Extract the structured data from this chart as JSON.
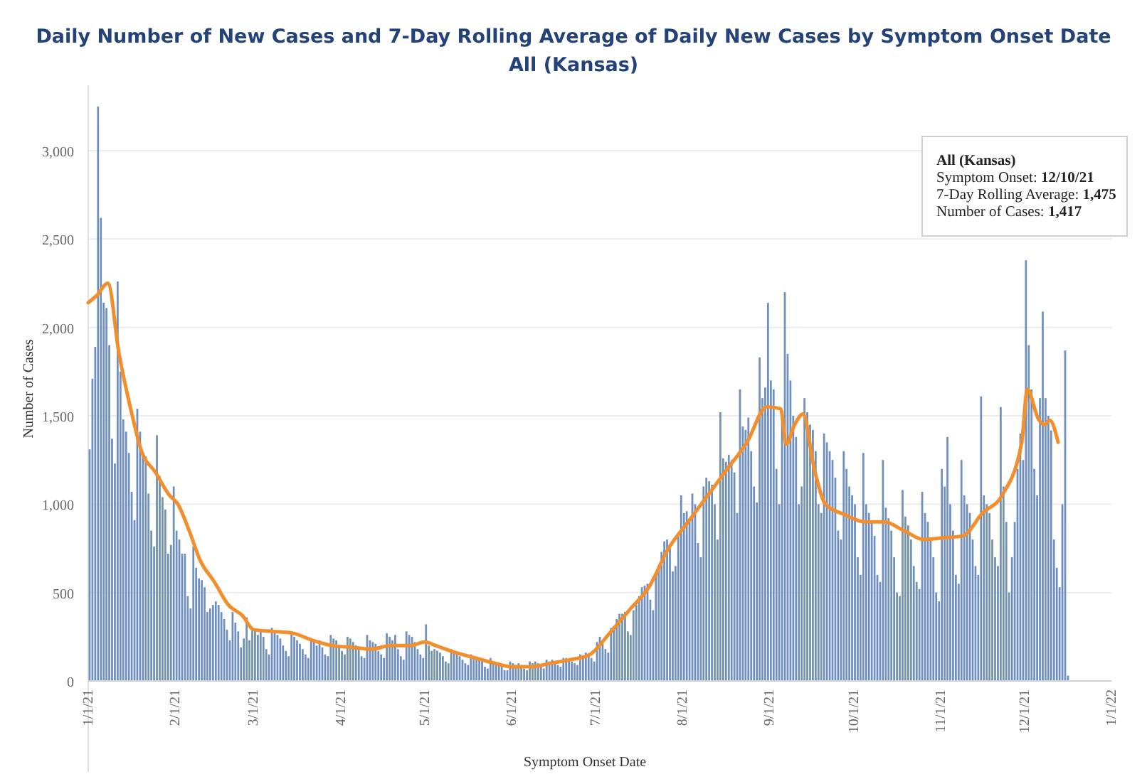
{
  "chart_data": {
    "type": "bar",
    "title": "Daily Number of New Cases and 7-Day Rolling Average of Daily New Cases by Symptom Onset Date",
    "subtitle": "All (Kansas)",
    "xlabel": "Symptom Onset Date",
    "ylabel": "Number of Cases",
    "xlim": [
      "2021-01-01",
      "2022-01-01"
    ],
    "xticks": [
      {
        "value": "2021-01-01",
        "label": "1/1/21"
      },
      {
        "value": "2021-02-01",
        "label": "2/1/21"
      },
      {
        "value": "2021-03-01",
        "label": "3/1/21"
      },
      {
        "value": "2021-04-01",
        "label": "4/1/21"
      },
      {
        "value": "2021-05-01",
        "label": "5/1/21"
      },
      {
        "value": "2021-06-01",
        "label": "6/1/21"
      },
      {
        "value": "2021-07-01",
        "label": "7/1/21"
      },
      {
        "value": "2021-08-01",
        "label": "8/1/21"
      },
      {
        "value": "2021-09-01",
        "label": "9/1/21"
      },
      {
        "value": "2021-10-01",
        "label": "10/1/21"
      },
      {
        "value": "2021-11-01",
        "label": "11/1/21"
      },
      {
        "value": "2021-12-01",
        "label": "12/1/21"
      },
      {
        "value": "2022-01-01",
        "label": "1/1/22"
      }
    ],
    "ylim": [
      0,
      3370
    ],
    "yticks": [
      0,
      {
        "value": 500,
        "label": "500"
      },
      {
        "value": 1000,
        "label": "1,000"
      },
      {
        "value": 1500,
        "label": "1,500"
      },
      {
        "value": 2000,
        "label": "2,000"
      },
      {
        "value": 2500,
        "label": "2,500"
      },
      {
        "value": 3000,
        "label": "3,000"
      }
    ],
    "grid": "y",
    "series": [
      {
        "type": "bar",
        "color": "#6f8fbc",
        "x": [
          "2021-01-01",
          "2021-01-02",
          "2021-01-03",
          "2021-01-04",
          "2021-01-05",
          "2021-01-06",
          "2021-01-07",
          "2021-01-08",
          "2021-01-09",
          "2021-01-10",
          "2021-01-11",
          "2021-01-12",
          "2021-01-13",
          "2021-01-14",
          "2021-01-15",
          "2021-01-16",
          "2021-01-17",
          "2021-01-18",
          "2021-01-19",
          "2021-01-20",
          "2021-01-21",
          "2021-01-22",
          "2021-01-23",
          "2021-01-24",
          "2021-01-25",
          "2021-01-26",
          "2021-01-27",
          "2021-01-28",
          "2021-01-29",
          "2021-01-30",
          "2021-01-31",
          "2021-02-01",
          "2021-02-02",
          "2021-02-03",
          "2021-02-04",
          "2021-02-05",
          "2021-02-06",
          "2021-02-07",
          "2021-02-08",
          "2021-02-09",
          "2021-02-10",
          "2021-02-11",
          "2021-02-12",
          "2021-02-13",
          "2021-02-14",
          "2021-02-15",
          "2021-02-16",
          "2021-02-17",
          "2021-02-18",
          "2021-02-19",
          "2021-02-20",
          "2021-02-21",
          "2021-02-22",
          "2021-02-23",
          "2021-02-24",
          "2021-02-25",
          "2021-02-26",
          "2021-02-27",
          "2021-02-28",
          "2021-03-01",
          "2021-03-02",
          "2021-03-03",
          "2021-03-04",
          "2021-03-05",
          "2021-03-06",
          "2021-03-07",
          "2021-03-08",
          "2021-03-09",
          "2021-03-10",
          "2021-03-11",
          "2021-03-12",
          "2021-03-13",
          "2021-03-14",
          "2021-03-15",
          "2021-03-16",
          "2021-03-17",
          "2021-03-18",
          "2021-03-19",
          "2021-03-20",
          "2021-03-21",
          "2021-03-22",
          "2021-03-23",
          "2021-03-24",
          "2021-03-25",
          "2021-03-26",
          "2021-03-27",
          "2021-03-28",
          "2021-03-29",
          "2021-03-30",
          "2021-03-31",
          "2021-04-01",
          "2021-04-02",
          "2021-04-03",
          "2021-04-04",
          "2021-04-05",
          "2021-04-06",
          "2021-04-07",
          "2021-04-08",
          "2021-04-09",
          "2021-04-10",
          "2021-04-11",
          "2021-04-12",
          "2021-04-13",
          "2021-04-14",
          "2021-04-15",
          "2021-04-16",
          "2021-04-17",
          "2021-04-18",
          "2021-04-19",
          "2021-04-20",
          "2021-04-21",
          "2021-04-22",
          "2021-04-23",
          "2021-04-24",
          "2021-04-25",
          "2021-04-26",
          "2021-04-27",
          "2021-04-28",
          "2021-04-29",
          "2021-04-30",
          "2021-05-01",
          "2021-05-02",
          "2021-05-03",
          "2021-05-04",
          "2021-05-05",
          "2021-05-06",
          "2021-05-07",
          "2021-05-08",
          "2021-05-09",
          "2021-05-10",
          "2021-05-11",
          "2021-05-12",
          "2021-05-13",
          "2021-05-14",
          "2021-05-15",
          "2021-05-16",
          "2021-05-17",
          "2021-05-18",
          "2021-05-19",
          "2021-05-20",
          "2021-05-21",
          "2021-05-22",
          "2021-05-23",
          "2021-05-24",
          "2021-05-25",
          "2021-05-26",
          "2021-05-27",
          "2021-05-28",
          "2021-05-29",
          "2021-05-30",
          "2021-05-31",
          "2021-06-01",
          "2021-06-02",
          "2021-06-03",
          "2021-06-04",
          "2021-06-05",
          "2021-06-06",
          "2021-06-07",
          "2021-06-08",
          "2021-06-09",
          "2021-06-10",
          "2021-06-11",
          "2021-06-12",
          "2021-06-13",
          "2021-06-14",
          "2021-06-15",
          "2021-06-16",
          "2021-06-17",
          "2021-06-18",
          "2021-06-19",
          "2021-06-20",
          "2021-06-21",
          "2021-06-22",
          "2021-06-23",
          "2021-06-24",
          "2021-06-25",
          "2021-06-26",
          "2021-06-27",
          "2021-06-28",
          "2021-06-29",
          "2021-06-30",
          "2021-07-01",
          "2021-07-02",
          "2021-07-03",
          "2021-07-04",
          "2021-07-05",
          "2021-07-06",
          "2021-07-07",
          "2021-07-08",
          "2021-07-09",
          "2021-07-10",
          "2021-07-11",
          "2021-07-12",
          "2021-07-13",
          "2021-07-14",
          "2021-07-15",
          "2021-07-16",
          "2021-07-17",
          "2021-07-18",
          "2021-07-19",
          "2021-07-20",
          "2021-07-21",
          "2021-07-22",
          "2021-07-23",
          "2021-07-24",
          "2021-07-25",
          "2021-07-26",
          "2021-07-27",
          "2021-07-28",
          "2021-07-29",
          "2021-07-30",
          "2021-07-31",
          "2021-08-01",
          "2021-08-02",
          "2021-08-03",
          "2021-08-04",
          "2021-08-05",
          "2021-08-06",
          "2021-08-07",
          "2021-08-08",
          "2021-08-09",
          "2021-08-10",
          "2021-08-11",
          "2021-08-12",
          "2021-08-13",
          "2021-08-14",
          "2021-08-15",
          "2021-08-16",
          "2021-08-17",
          "2021-08-18",
          "2021-08-19",
          "2021-08-20",
          "2021-08-21",
          "2021-08-22",
          "2021-08-23",
          "2021-08-24",
          "2021-08-25",
          "2021-08-26",
          "2021-08-27",
          "2021-08-28",
          "2021-08-29",
          "2021-08-30",
          "2021-08-31",
          "2021-09-01",
          "2021-09-02",
          "2021-09-03",
          "2021-09-04",
          "2021-09-05",
          "2021-09-06",
          "2021-09-07",
          "2021-09-08",
          "2021-09-09",
          "2021-09-10",
          "2021-09-11",
          "2021-09-12",
          "2021-09-13",
          "2021-09-14",
          "2021-09-15",
          "2021-09-16",
          "2021-09-17",
          "2021-09-18",
          "2021-09-19",
          "2021-09-20",
          "2021-09-21",
          "2021-09-22",
          "2021-09-23",
          "2021-09-24",
          "2021-09-25",
          "2021-09-26",
          "2021-09-27",
          "2021-09-28",
          "2021-09-29",
          "2021-09-30",
          "2021-10-01",
          "2021-10-02",
          "2021-10-03",
          "2021-10-04",
          "2021-10-05",
          "2021-10-06",
          "2021-10-07",
          "2021-10-08",
          "2021-10-09",
          "2021-10-10",
          "2021-10-11",
          "2021-10-12",
          "2021-10-13",
          "2021-10-14",
          "2021-10-15",
          "2021-10-16",
          "2021-10-17",
          "2021-10-18",
          "2021-10-19",
          "2021-10-20",
          "2021-10-21",
          "2021-10-22",
          "2021-10-23",
          "2021-10-24",
          "2021-10-25",
          "2021-10-26",
          "2021-10-27",
          "2021-10-28",
          "2021-10-29",
          "2021-10-30",
          "2021-10-31",
          "2021-11-01",
          "2021-11-02",
          "2021-11-03",
          "2021-11-04",
          "2021-11-05",
          "2021-11-06",
          "2021-11-07",
          "2021-11-08",
          "2021-11-09",
          "2021-11-10",
          "2021-11-11",
          "2021-11-12",
          "2021-11-13",
          "2021-11-14",
          "2021-11-15",
          "2021-11-16",
          "2021-11-17",
          "2021-11-18",
          "2021-11-19",
          "2021-11-20",
          "2021-11-21",
          "2021-11-22",
          "2021-11-23",
          "2021-11-24",
          "2021-11-25",
          "2021-11-26",
          "2021-11-27",
          "2021-11-28",
          "2021-11-29",
          "2021-11-30",
          "2021-12-01",
          "2021-12-02",
          "2021-12-03",
          "2021-12-04",
          "2021-12-05",
          "2021-12-06",
          "2021-12-07",
          "2021-12-08",
          "2021-12-09",
          "2021-12-10",
          "2021-12-11",
          "2021-12-12",
          "2021-12-13",
          "2021-12-14",
          "2021-12-15",
          "2021-12-16"
        ],
        "values": [
          1310,
          1710,
          1890,
          3250,
          2620,
          2140,
          2110,
          1900,
          1370,
          1230,
          2260,
          1750,
          1480,
          1410,
          1290,
          1070,
          910,
          1540,
          1410,
          1270,
          1270,
          1060,
          850,
          760,
          1390,
          1160,
          1040,
          970,
          720,
          770,
          1100,
          850,
          800,
          720,
          720,
          480,
          410,
          760,
          640,
          580,
          570,
          530,
          390,
          410,
          430,
          450,
          430,
          390,
          350,
          290,
          230,
          390,
          330,
          280,
          190,
          240,
          360,
          230,
          290,
          290,
          260,
          280,
          250,
          180,
          150,
          300,
          270,
          260,
          240,
          200,
          170,
          140,
          280,
          250,
          230,
          210,
          180,
          150,
          130,
          240,
          220,
          200,
          230,
          190,
          150,
          140,
          260,
          240,
          230,
          200,
          170,
          150,
          250,
          240,
          220,
          200,
          180,
          140,
          130,
          260,
          230,
          220,
          210,
          170,
          150,
          130,
          270,
          250,
          230,
          260,
          180,
          140,
          120,
          280,
          260,
          250,
          220,
          180,
          150,
          130,
          320,
          200,
          170,
          180,
          170,
          160,
          140,
          110,
          100,
          180,
          160,
          150,
          140,
          120,
          100,
          90,
          150,
          140,
          130,
          120,
          110,
          80,
          70,
          130,
          110,
          100,
          90,
          80,
          60,
          60,
          110,
          100,
          90,
          100,
          90,
          70,
          60,
          110,
          100,
          110,
          100,
          80,
          70,
          120,
          110,
          120,
          100,
          90,
          80,
          130,
          130,
          120,
          110,
          100,
          90,
          150,
          140,
          160,
          150,
          130,
          110,
          220,
          250,
          210,
          180,
          160,
          300,
          310,
          350,
          380,
          380,
          390,
          280,
          260,
          400,
          430,
          480,
          530,
          540,
          550,
          460,
          400,
          600,
          650,
          730,
          790,
          800,
          760,
          620,
          650,
          820,
          1050,
          950,
          960,
          900,
          1060,
          1000,
          780,
          700,
          1100,
          1150,
          1130,
          1110,
          1000,
          800,
          1520,
          1260,
          1240,
          1280,
          1250,
          1180,
          950,
          1650,
          1440,
          1420,
          1490,
          1300,
          1100,
          1010,
          1830,
          1600,
          1660,
          2140,
          1700,
          1650,
          1200,
          1000,
          1500,
          2200,
          1850,
          1700,
          1500,
          1380,
          1000,
          1100,
          1600,
          1520,
          1450,
          1420,
          1300,
          1000,
          950,
          1400,
          1350,
          1300,
          1250,
          1150,
          850,
          800,
          1300,
          1200,
          1100,
          1050,
          1000,
          700,
          600,
          1290,
          1000,
          950,
          900,
          820,
          600,
          560,
          1250,
          980,
          920,
          850,
          700,
          500,
          480,
          1080,
          930,
          880,
          800,
          650,
          560,
          520,
          1070,
          950,
          900,
          800,
          700,
          500,
          450,
          1200,
          1100,
          1380,
          1000,
          850,
          600,
          550,
          1250,
          1050,
          1000,
          950,
          800,
          650,
          600,
          1610,
          1050,
          1000,
          950,
          800,
          700,
          650,
          1550,
          1100,
          900,
          500,
          700,
          900,
          1200,
          1400,
          1250,
          2380,
          1900,
          1650,
          1200,
          1050,
          1600,
          2090,
          1600,
          1500,
          1417,
          800,
          640,
          530,
          1000,
          1870,
          30
        ]
      },
      {
        "type": "line",
        "color": "#f28e2b",
        "x": [
          "2021-01-01",
          "2021-01-04",
          "2021-01-08",
          "2021-01-12",
          "2021-01-16",
          "2021-01-20",
          "2021-01-25",
          "2021-01-30",
          "2021-02-02",
          "2021-02-06",
          "2021-02-10",
          "2021-02-15",
          "2021-02-20",
          "2021-02-25",
          "2021-03-01",
          "2021-03-08",
          "2021-03-15",
          "2021-03-22",
          "2021-03-29",
          "2021-04-05",
          "2021-04-12",
          "2021-04-19",
          "2021-04-26",
          "2021-05-01",
          "2021-05-05",
          "2021-05-12",
          "2021-05-19",
          "2021-05-26",
          "2021-06-01",
          "2021-06-08",
          "2021-06-15",
          "2021-06-22",
          "2021-06-29",
          "2021-07-06",
          "2021-07-13",
          "2021-07-20",
          "2021-07-27",
          "2021-08-03",
          "2021-08-10",
          "2021-08-17",
          "2021-08-24",
          "2021-08-31",
          "2021-09-05",
          "2021-09-07",
          "2021-09-10",
          "2021-09-13",
          "2021-09-17",
          "2021-09-21",
          "2021-09-28",
          "2021-10-05",
          "2021-10-12",
          "2021-10-19",
          "2021-10-26",
          "2021-11-02",
          "2021-11-09",
          "2021-11-16",
          "2021-11-23",
          "2021-11-30",
          "2021-12-02",
          "2021-12-06",
          "2021-12-08",
          "2021-12-10",
          "2021-12-13"
        ],
        "values": [
          2140,
          2180,
          2250,
          1850,
          1550,
          1300,
          1180,
          1050,
          1000,
          850,
          680,
          560,
          430,
          370,
          290,
          280,
          270,
          230,
          200,
          190,
          180,
          200,
          200,
          220,
          200,
          160,
          130,
          100,
          80,
          80,
          100,
          120,
          150,
          270,
          400,
          530,
          750,
          900,
          1050,
          1200,
          1350,
          1550,
          1540,
          1340,
          1450,
          1510,
          1200,
          1000,
          940,
          900,
          900,
          850,
          800,
          810,
          820,
          950,
          1050,
          1350,
          1650,
          1480,
          1450,
          1475,
          1350
        ]
      }
    ],
    "annotations": [
      "All (Kansas)",
      "Symptom Onset: 12/10/21",
      "7-Day Rolling Average: 1,475",
      "Number of Cases: 1,417"
    ]
  }
}
